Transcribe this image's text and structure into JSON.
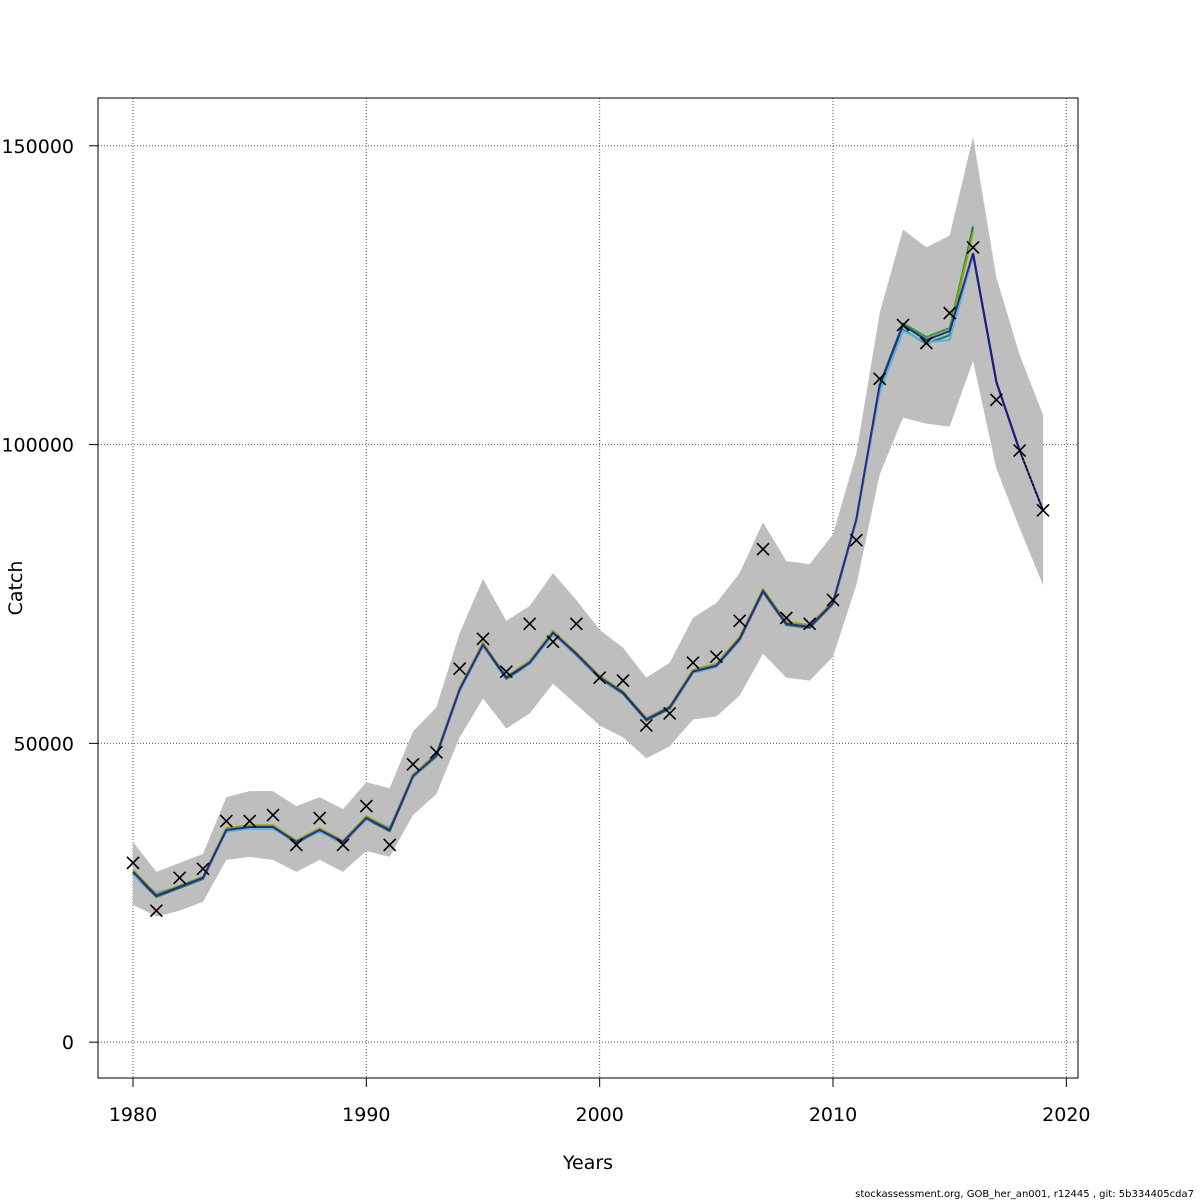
{
  "chart_data": {
    "type": "line",
    "xlabel": "Years",
    "ylabel": "Catch",
    "xlim": [
      1978.5,
      2020.5
    ],
    "ylim": [
      -6000,
      158000
    ],
    "xticks": [
      1980,
      1990,
      2000,
      2010,
      2020
    ],
    "yticks": [
      0,
      50000,
      100000,
      150000
    ],
    "xtick_labels": [
      "1980",
      "1990",
      "2000",
      "2010",
      "2020"
    ],
    "ytick_labels": [
      "0",
      "50000",
      "100000",
      "150000"
    ],
    "grid": true,
    "years": [
      1980,
      1981,
      1982,
      1983,
      1984,
      1985,
      1986,
      1987,
      1988,
      1989,
      1990,
      1991,
      1992,
      1993,
      1994,
      1995,
      1996,
      1997,
      1998,
      1999,
      2000,
      2001,
      2002,
      2003,
      2004,
      2005,
      2006,
      2007,
      2008,
      2009,
      2010,
      2011,
      2012,
      2013,
      2014,
      2015,
      2016,
      2017,
      2018,
      2019
    ],
    "observed": [
      30000,
      22000,
      27500,
      29000,
      37000,
      37000,
      38000,
      33000,
      37500,
      33000,
      39500,
      33000,
      46500,
      48500,
      62500,
      67500,
      62000,
      70000,
      67000,
      70000,
      61000,
      60500,
      53000,
      55000,
      63500,
      64500,
      70500,
      82500,
      71000,
      70000,
      74000,
      84000,
      111000,
      120000,
      117000,
      122000,
      133000,
      107500,
      99000,
      89000
    ],
    "estimate": [
      28500,
      24500,
      26000,
      27500,
      35500,
      36000,
      36000,
      33500,
      35500,
      33500,
      37500,
      35500,
      44500,
      48000,
      59000,
      66500,
      61000,
      63500,
      68500,
      65000,
      61000,
      58500,
      54000,
      56000,
      62000,
      63000,
      67500,
      75500,
      70000,
      69500,
      73500,
      87500,
      110000,
      120000,
      117500,
      119000,
      135500,
      110500,
      99000,
      89000
    ],
    "ci_lower": [
      23000,
      21000,
      22000,
      23500,
      30500,
      31000,
      30500,
      28500,
      30500,
      28500,
      32000,
      31000,
      38000,
      41500,
      51000,
      57500,
      52500,
      55000,
      60000,
      56500,
      53000,
      51000,
      47500,
      49500,
      54000,
      54500,
      58000,
      65000,
      61000,
      60500,
      64500,
      76500,
      95000,
      104500,
      103500,
      103000,
      114000,
      96000,
      86000,
      76500
    ],
    "ci_upper": [
      33500,
      28500,
      30000,
      31500,
      41000,
      42000,
      42000,
      39500,
      41000,
      39000,
      43500,
      42500,
      52000,
      56000,
      68500,
      77500,
      70500,
      73000,
      78500,
      74000,
      69000,
      66000,
      61000,
      63500,
      71000,
      73500,
      78500,
      87000,
      80500,
      80000,
      85000,
      98500,
      122000,
      136000,
      133000,
      135000,
      151500,
      128000,
      115000,
      105000
    ],
    "model_runs": [
      {
        "color": "#2ca02c",
        "offsets": [
          0,
          0,
          0,
          0,
          0,
          0,
          0,
          0,
          0,
          0,
          0,
          0,
          0,
          0,
          0,
          0,
          0,
          0,
          0,
          0,
          0,
          0,
          0,
          0,
          0,
          0,
          0,
          0,
          0,
          0,
          0,
          0,
          0,
          300,
          500,
          500,
          800
        ]
      },
      {
        "color": "#1f7a6a",
        "offsets": [
          -300,
          -200,
          -200,
          -200,
          -200,
          -200,
          -200,
          -200,
          -200,
          -200,
          -200,
          -200,
          -200,
          -200,
          -200,
          -200,
          -200,
          -200,
          -200,
          -200,
          -200,
          -200,
          -200,
          -200,
          -200,
          -200,
          -200,
          -200,
          -200,
          -200,
          -200,
          -200,
          -500,
          -800,
          -600,
          -700,
          1000
        ]
      },
      {
        "color": "#5ab4e0",
        "offsets": [
          -500,
          500,
          0,
          0,
          -300,
          -300,
          -300,
          0,
          -300,
          0,
          -300,
          500,
          -300,
          0,
          -300,
          -300,
          300,
          -300,
          -300,
          0,
          -200,
          0,
          200,
          0,
          -200,
          -200,
          0,
          0,
          0,
          0,
          0,
          -300,
          -1200,
          -1000,
          -400,
          -1500,
          -4000
        ]
      },
      {
        "color": "#8fa800",
        "offsets": [
          300,
          200,
          200,
          200,
          300,
          300,
          300,
          200,
          300,
          200,
          300,
          200,
          300,
          200,
          300,
          300,
          200,
          300,
          300,
          200,
          300,
          200,
          200,
          200,
          300,
          300,
          300,
          300,
          300,
          300,
          300,
          0,
          0,
          0,
          0,
          0,
          0
        ]
      },
      {
        "color": "#2a2a8a",
        "offsets": [
          0,
          0,
          0,
          0,
          0,
          0,
          0,
          0,
          0,
          0,
          0,
          0,
          0,
          0,
          0,
          0,
          0,
          0,
          0,
          0,
          0,
          0,
          0,
          0,
          0,
          0,
          0,
          0,
          0,
          0,
          0,
          0,
          0,
          0,
          0,
          0,
          -3500,
          0,
          0,
          0
        ]
      }
    ],
    "forecast_years": [
      2016,
      2017,
      2018,
      2019
    ],
    "forecast_values": [
      132000,
      110500,
      99000,
      89000
    ],
    "footer": "stockassessment.org, GOB_her_an001, r12445 , git: 5b334405cda7"
  }
}
